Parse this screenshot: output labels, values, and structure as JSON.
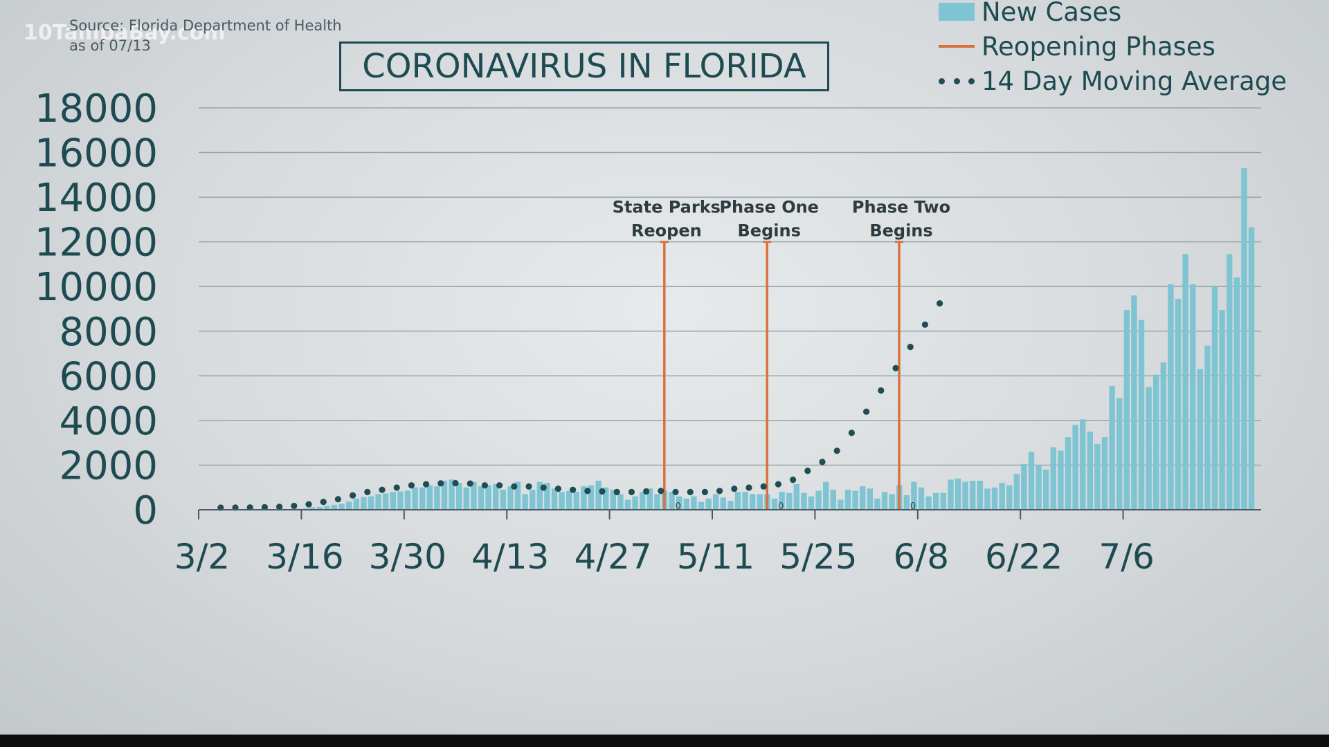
{
  "header": {
    "watermark": "10TampaBay.com",
    "source": "Source: Florida Department of Health",
    "as_of": "as of 07/13"
  },
  "colors": {
    "bar": "#7ec4d2",
    "phase_line": "#d9713c",
    "avg_dot": "#1f4d55",
    "text": "#1e4a52",
    "grid": "#9aa4a8"
  },
  "chart_data": {
    "type": "bar",
    "title": "CORONAVIRUS IN FLORIDA",
    "xlabel": "",
    "ylabel": "",
    "ylim": [
      0,
      18000
    ],
    "y_ticks": [
      "18000",
      "16000",
      "14000",
      "12000",
      "10000",
      "8000",
      "6000",
      "4000",
      "2000",
      "0"
    ],
    "x_ticks": [
      "3/2",
      "3/16",
      "3/30",
      "4/13",
      "4/27",
      "5/11",
      "5/25",
      "6/8",
      "6/22",
      "7/6"
    ],
    "legend": [
      "New Cases",
      "Reopening Phases",
      "14 Day Moving Average"
    ],
    "legend_position": "top-right",
    "grid": true,
    "start_date": "2020-03-02",
    "series": [
      {
        "name": "New Cases",
        "type": "bar",
        "values": [
          0,
          0,
          2,
          2,
          1,
          4,
          10,
          8,
          12,
          20,
          24,
          35,
          37,
          47,
          60,
          105,
          125,
          175,
          220,
          260,
          360,
          500,
          570,
          600,
          700,
          730,
          800,
          820,
          860,
          1000,
          1000,
          1100,
          1050,
          1300,
          1350,
          1200,
          1000,
          1250,
          1050,
          1100,
          1150,
          900,
          1050,
          1250,
          700,
          900,
          1250,
          1200,
          950,
          800,
          850,
          800,
          1050,
          1100,
          1300,
          1000,
          900,
          700,
          450,
          600,
          800,
          950,
          700,
          850,
          800,
          600,
          500,
          600,
          350,
          500,
          700,
          550,
          400,
          800,
          800,
          700,
          700,
          700,
          500,
          800,
          750,
          1150,
          750,
          600,
          850,
          1250,
          900,
          450,
          900,
          850,
          1050,
          950,
          500,
          800,
          700,
          1100,
          650,
          1250,
          1000,
          600,
          750,
          750,
          1350,
          1400,
          1250,
          1300,
          1300,
          950,
          1000,
          1200,
          1100,
          1600,
          2050,
          2600,
          2000,
          1800,
          2800,
          2650,
          3250,
          3800,
          4050,
          3500,
          2950,
          3250,
          5550,
          5000,
          8950,
          9600,
          8500,
          5500,
          6050,
          6600,
          10100,
          9450,
          11450,
          10100,
          6300,
          7350,
          10000,
          8950,
          11450,
          10400,
          15300,
          12650
        ]
      },
      {
        "name": "14 Day Moving Average",
        "type": "dots",
        "day_step": 2,
        "values": [
          0,
          5,
          10,
          20,
          40,
          80,
          150,
          260,
          380,
          550,
          700,
          800,
          900,
          1000,
          1050,
          1090,
          1100,
          1080,
          1000,
          1000,
          950,
          950,
          900,
          850,
          800,
          750,
          730,
          700,
          700,
          730,
          750,
          700,
          700,
          700,
          750,
          850,
          900,
          950,
          1050,
          1250,
          1650,
          2050,
          2550,
          3350,
          4300,
          5250,
          6250,
          7200,
          8200,
          9150
        ]
      },
      {
        "name": "Reopening Phases",
        "type": "vline",
        "lines": [
          {
            "label_line1": "State Parks",
            "label_line2": "Reopen",
            "date": "5/4",
            "value": 12000,
            "base_label": "0"
          },
          {
            "label_line1": "Phase One",
            "label_line2": "Begins",
            "date": "5/18",
            "value": 12000,
            "base_label": "0"
          },
          {
            "label_line1": "Phase Two",
            "label_line2": "Begins",
            "date": "6/5",
            "value": 12000,
            "base_label": "0"
          }
        ]
      }
    ]
  }
}
